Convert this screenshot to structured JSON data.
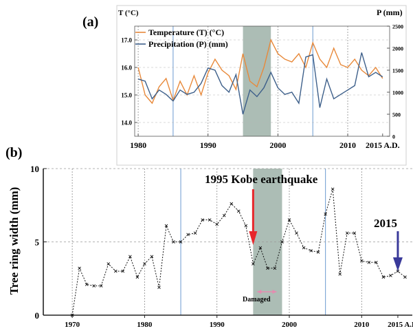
{
  "colors": {
    "temperature": "#e8893a",
    "precipitation": "#3d5f8a",
    "shade": "#9db2a8",
    "quake_arrow": "#e8262a",
    "year_arrow": "#3a3a9a",
    "damaged_arrow": "#e58bb0",
    "vline": "#6a9ad0"
  },
  "chart_data": [
    {
      "panel": "(a)",
      "type": "line",
      "left_axis_title": "T (°C)",
      "right_axis_title": "P (mm)",
      "ylim_left": [
        13.5,
        17.5
      ],
      "ylim_right": [
        0,
        2500
      ],
      "y_ticks_left": [
        "14.0",
        "15.0",
        "16.0",
        "17.0"
      ],
      "y_ticks_right": [
        "0",
        "500",
        "1000",
        "1500",
        "2000",
        "2500"
      ],
      "x_ticks": [
        "1980",
        "1990",
        "2000",
        "2010",
        "2015 A.D."
      ],
      "xlim": [
        1979.5,
        2016
      ],
      "shaded_range": [
        1995,
        1999
      ],
      "series": [
        {
          "name": "Temperature (T) (°C)",
          "axis": "left",
          "x": [
            1980,
            1981,
            1982,
            1983,
            1984,
            1985,
            1986,
            1987,
            1988,
            1989,
            1990,
            1991,
            1992,
            1993,
            1994,
            1995,
            1996,
            1997,
            1998,
            1999,
            2000,
            2001,
            2002,
            2003,
            2004,
            2005,
            2006,
            2007,
            2008,
            2009,
            2010,
            2011,
            2012,
            2013,
            2014,
            2015
          ],
          "values": [
            16.0,
            15.0,
            14.7,
            15.3,
            15.6,
            14.8,
            15.5,
            15.0,
            15.7,
            15.0,
            15.8,
            16.3,
            15.9,
            15.7,
            15.2,
            16.5,
            15.5,
            15.3,
            16.0,
            17.0,
            16.5,
            16.3,
            16.2,
            16.5,
            16.0,
            16.9,
            16.3,
            16.0,
            16.7,
            16.1,
            16.0,
            16.3,
            15.9,
            15.7,
            16.0,
            15.6
          ]
        },
        {
          "name": "Precipitation (P) (mm)",
          "axis": "right",
          "x": [
            1980,
            1981,
            1982,
            1983,
            1984,
            1985,
            1986,
            1987,
            1988,
            1989,
            1990,
            1991,
            1992,
            1993,
            1994,
            1995,
            1996,
            1997,
            1998,
            1999,
            2000,
            2001,
            2002,
            2003,
            2004,
            2005,
            2006,
            2007,
            2008,
            2009,
            2010,
            2011,
            2012,
            2013,
            2014,
            2015
          ],
          "values": [
            1300,
            1250,
            850,
            1050,
            950,
            800,
            1050,
            950,
            1000,
            1200,
            1550,
            1500,
            1150,
            1000,
            1400,
            500,
            1050,
            900,
            1100,
            1450,
            1100,
            950,
            1000,
            750,
            1800,
            1850,
            650,
            1300,
            850,
            950,
            1050,
            1150,
            1900,
            1350,
            1450,
            1350
          ]
        }
      ]
    },
    {
      "panel": "(b)",
      "type": "line",
      "ylabel": "Tree ring width (mm)",
      "ylim": [
        0,
        10
      ],
      "y_ticks": [
        "0",
        "5",
        "10"
      ],
      "x_ticks": [
        "1970",
        "1980",
        "1990",
        "2000",
        "2010",
        "2015 A.D."
      ],
      "xlim": [
        1966,
        2017
      ],
      "shaded_range": [
        1995,
        1999
      ],
      "series": [
        {
          "name": "",
          "x": [
            1970,
            1971,
            1972,
            1973,
            1974,
            1975,
            1976,
            1977,
            1978,
            1979,
            1980,
            1981,
            1982,
            1983,
            1984,
            1985,
            1986,
            1987,
            1988,
            1989,
            1990,
            1991,
            1992,
            1993,
            1994,
            1995,
            1996,
            1997,
            1998,
            1999,
            2000,
            2001,
            2002,
            2003,
            2004,
            2005,
            2006,
            2007,
            2008,
            2009,
            2010,
            2011,
            2012,
            2013,
            2014,
            2015,
            2016
          ],
          "values": [
            0,
            3.2,
            2.1,
            2.0,
            2.0,
            3.5,
            3.0,
            3.0,
            4.0,
            2.6,
            3.5,
            4.0,
            1.9,
            6.1,
            5.0,
            5.0,
            5.5,
            5.6,
            6.5,
            6.5,
            6.2,
            6.8,
            7.6,
            7.1,
            6.1,
            3.5,
            4.6,
            3.2,
            3.2,
            5.0,
            6.5,
            5.6,
            4.6,
            4.4,
            4.3,
            6.9,
            8.6,
            2.8,
            5.6,
            5.6,
            3.7,
            3.6,
            3.6,
            2.6,
            2.7,
            3.0,
            2.6
          ]
        }
      ],
      "annotations": {
        "quake": "1995 Kobe earthquake",
        "year": "2015",
        "damaged": "Damaged"
      }
    }
  ]
}
